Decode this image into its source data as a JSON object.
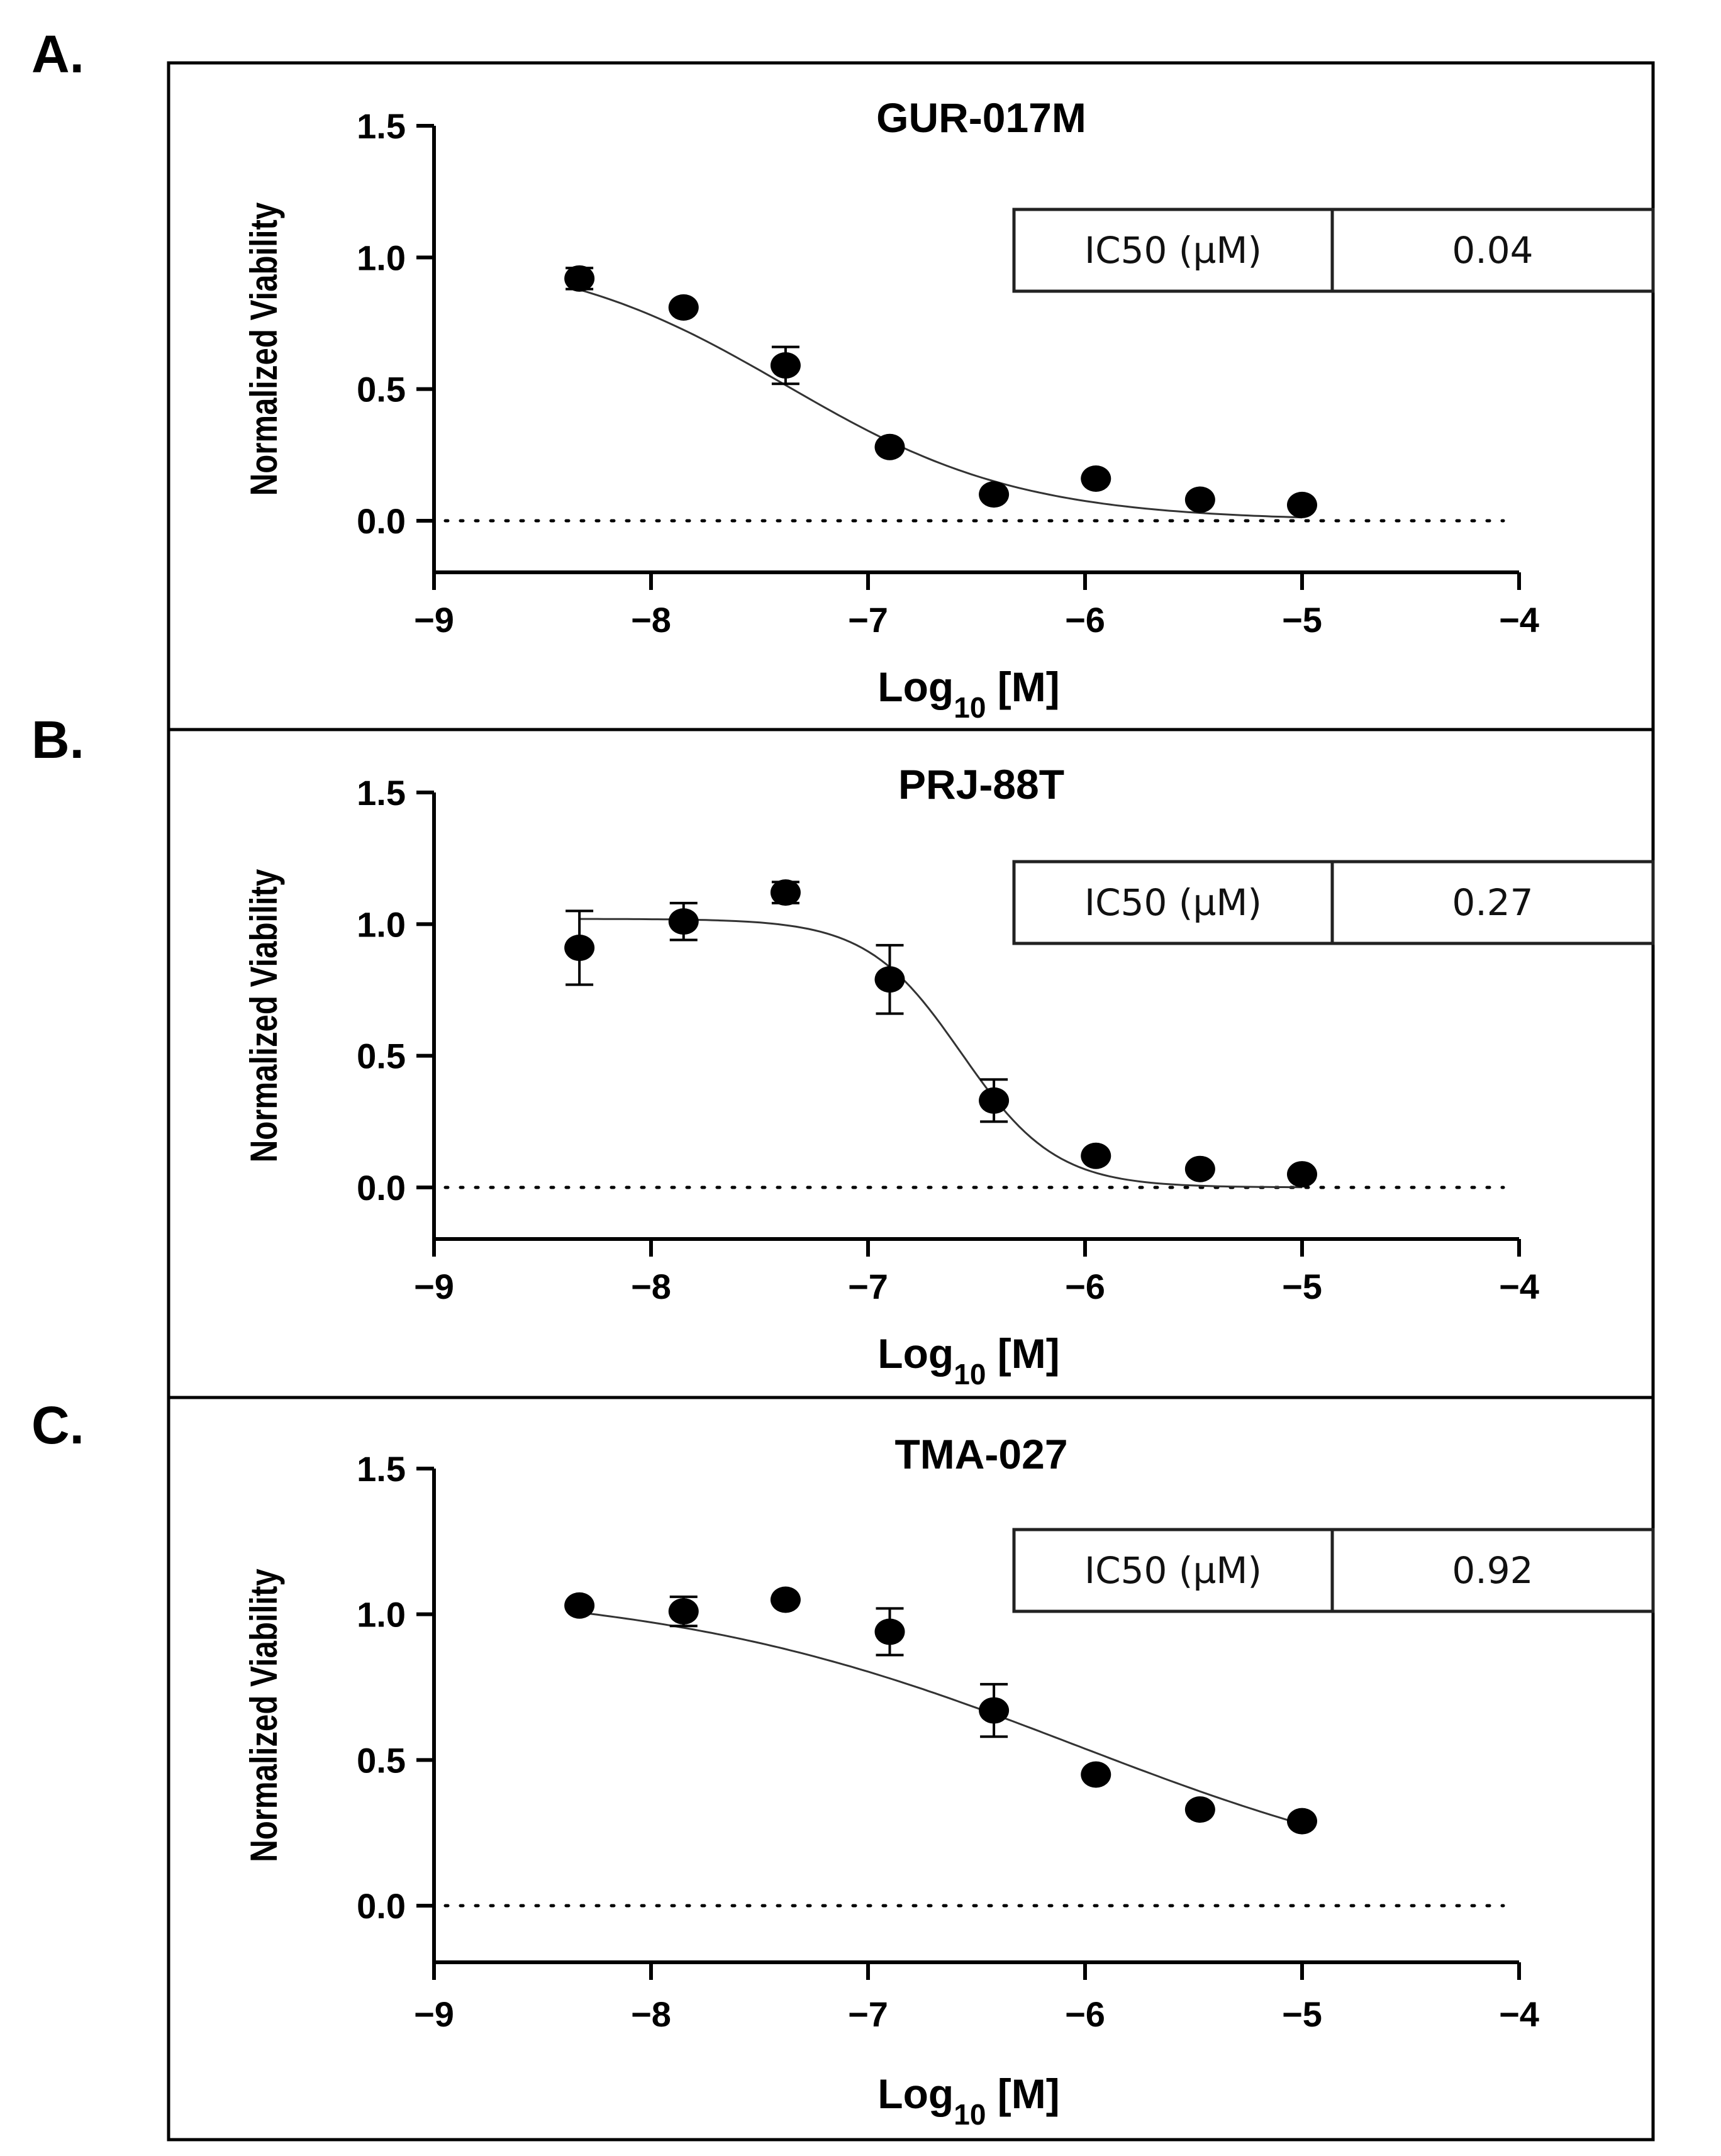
{
  "chart_data": [
    {
      "panel": "A.",
      "type": "scatter",
      "title": "GUR-017M",
      "xlabel": "Log",
      "xlabel_sub": "10",
      "xlabel_suffix": " [M]",
      "ylabel": "Normalized Viability",
      "xlim": [
        -9,
        -4
      ],
      "ylim": [
        -0.2,
        1.5
      ],
      "xticks": [
        -9,
        -8,
        -7,
        -6,
        -5,
        -4
      ],
      "yticks": [
        0.0,
        0.5,
        1.0,
        1.5
      ],
      "x": [
        -8.33,
        -7.85,
        -7.38,
        -6.9,
        -6.42,
        -5.95,
        -5.47,
        -5.0
      ],
      "y": [
        0.92,
        0.81,
        0.59,
        0.28,
        0.1,
        0.16,
        0.08,
        0.06
      ],
      "error": [
        0.04,
        0.02,
        0.07,
        0.02,
        0.02,
        0.02,
        0.02,
        0.02
      ],
      "fit": {
        "top": 1.03,
        "bottom": 0.0,
        "logIC50": -7.38,
        "hill": -0.8
      },
      "reference_line_y": 0.0,
      "ic50_label": "IC50 (µM)",
      "ic50_value": "0.04"
    },
    {
      "panel": "B.",
      "type": "scatter",
      "title": "PRJ-88T",
      "xlabel": "Log",
      "xlabel_sub": "10",
      "xlabel_suffix": " [M]",
      "ylabel": "Normalized Viability",
      "xlim": [
        -9,
        -4
      ],
      "ylim": [
        -0.2,
        1.5
      ],
      "xticks": [
        -9,
        -8,
        -7,
        -6,
        -5,
        -4
      ],
      "yticks": [
        0.0,
        0.5,
        1.0,
        1.5
      ],
      "x": [
        -8.33,
        -7.85,
        -7.38,
        -6.9,
        -6.42,
        -5.95,
        -5.47,
        -5.0
      ],
      "y": [
        0.91,
        1.01,
        1.12,
        0.79,
        0.33,
        0.12,
        0.07,
        0.05
      ],
      "error": [
        0.14,
        0.07,
        0.04,
        0.13,
        0.08,
        0.02,
        0.02,
        0.02
      ],
      "fit": {
        "top": 1.02,
        "bottom": 0.0,
        "logIC50": -6.57,
        "hill": -2.0
      },
      "reference_line_y": 0.0,
      "ic50_label": "IC50 (µM)",
      "ic50_value": "0.27"
    },
    {
      "panel": "C.",
      "type": "scatter",
      "title": "TMA-027",
      "xlabel": "Log",
      "xlabel_sub": "10",
      "xlabel_suffix": " [M]",
      "ylabel": "Normalized Viability",
      "xlim": [
        -9,
        -4
      ],
      "ylim": [
        -0.2,
        1.5
      ],
      "xticks": [
        -9,
        -8,
        -7,
        -6,
        -5,
        -4
      ],
      "yticks": [
        0.0,
        0.5,
        1.0,
        1.5
      ],
      "x": [
        -8.33,
        -7.85,
        -7.38,
        -6.9,
        -6.42,
        -5.95,
        -5.47,
        -5.0
      ],
      "y": [
        1.03,
        1.01,
        1.05,
        0.94,
        0.67,
        0.45,
        0.33,
        0.29
      ],
      "error": [
        0.02,
        0.05,
        0.02,
        0.08,
        0.09,
        0.02,
        0.02,
        0.02
      ],
      "fit": {
        "top": 1.1,
        "bottom": 0.0,
        "logIC50": -6.04,
        "hill": -0.45
      },
      "reference_line_y": 0.0,
      "ic50_label": "IC50 (µM)",
      "ic50_value": "0.92"
    }
  ]
}
